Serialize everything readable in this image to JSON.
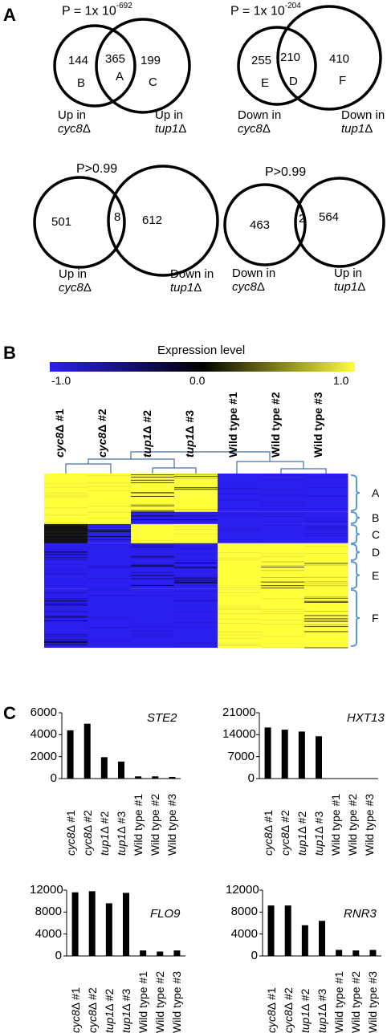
{
  "panels": {
    "a": "A",
    "b": "B",
    "c": "C"
  },
  "venn": [
    {
      "p_base": "P = 1x 10",
      "p_exp": "-692",
      "left": {
        "count": "144",
        "region": "B"
      },
      "overlap": {
        "count": "365",
        "region": "A"
      },
      "right": {
        "count": "199",
        "region": "C"
      },
      "left_label": {
        "prefix": "Up in",
        "gene": "cyc8",
        "suffix": "Δ"
      },
      "right_label": {
        "prefix": "Up in",
        "gene": "tup1",
        "suffix": "Δ"
      }
    },
    {
      "p_base": "P = 1x 10",
      "p_exp": "-204",
      "left": {
        "count": "255",
        "region": "E"
      },
      "overlap": {
        "count": "210",
        "region": "D"
      },
      "right": {
        "count": "410",
        "region": "F"
      },
      "left_label": {
        "prefix": "Down in",
        "gene": "cyc8",
        "suffix": "Δ"
      },
      "right_label": {
        "prefix": "Down in",
        "gene": "tup1",
        "suffix": "Δ"
      }
    },
    {
      "p_text": "P>0.99",
      "left": {
        "count": "501"
      },
      "overlap": {
        "count": "8"
      },
      "right": {
        "count": "612"
      },
      "left_label": {
        "prefix": "Up in",
        "gene": "cyc8",
        "suffix": "Δ"
      },
      "right_label": {
        "prefix": "Down in",
        "gene": "tup1",
        "suffix": "Δ"
      }
    },
    {
      "p_text": "P>0.99",
      "left": {
        "count": "463"
      },
      "overlap": {
        "count": "2"
      },
      "right": {
        "count": "564"
      },
      "left_label": {
        "prefix": "Down in",
        "gene": "cyc8",
        "suffix": "Δ"
      },
      "right_label": {
        "prefix": "Up in",
        "gene": "tup1",
        "suffix": "Δ"
      }
    }
  ],
  "heatmap": {
    "title": "Expression level",
    "scale_labels": [
      "-1.0",
      "0.0",
      "1.0"
    ],
    "colors": {
      "low": "#2b1ff0",
      "mid": "#000000",
      "high": "#ffff3a",
      "bracket": "#5b9bd5"
    },
    "columns": [
      {
        "gene": "cyc8",
        "suffix": "Δ #1"
      },
      {
        "gene": "cyc8",
        "suffix": "Δ #2"
      },
      {
        "gene": "tup1",
        "suffix": "Δ #2"
      },
      {
        "gene": "tup1",
        "suffix": "Δ #3"
      },
      {
        "gene": "",
        "suffix": "Wild type #1"
      },
      {
        "gene": "",
        "suffix": "Wild type #2"
      },
      {
        "gene": "",
        "suffix": "Wild type #3"
      }
    ],
    "clusters": [
      "A",
      "B",
      "C",
      "D",
      "E",
      "F"
    ]
  },
  "chart_data": [
    {
      "type": "bar",
      "title": "STE2",
      "categories": [
        "cyc8Δ #1",
        "cyc8Δ #2",
        "tup1Δ #2",
        "tup1Δ #3",
        "Wild type #1",
        "Wild type #2",
        "Wild type #3"
      ],
      "values": [
        4400,
        5000,
        1950,
        1550,
        200,
        200,
        150
      ],
      "ylim": [
        0,
        6000
      ],
      "yticks": [
        "6000",
        "4000",
        "2000",
        "0"
      ]
    },
    {
      "type": "bar",
      "title": "HXT13",
      "categories": [
        "cyc8Δ #1",
        "cyc8Δ #2",
        "tup1Δ #2",
        "tup1Δ #3",
        "Wild type #1",
        "Wild type #2",
        "Wild type #3"
      ],
      "values": [
        16300,
        15600,
        15000,
        13500,
        0,
        0,
        0
      ],
      "ylim": [
        0,
        21000
      ],
      "yticks": [
        "21000",
        "14000",
        "7000",
        "0"
      ]
    },
    {
      "type": "bar",
      "title": "FLO9",
      "categories": [
        "cyc8Δ #1",
        "cyc8Δ #2",
        "tup1Δ #2",
        "tup1Δ #3",
        "Wild type #1",
        "Wild type #2",
        "Wild type #3"
      ],
      "values": [
        11600,
        11800,
        9600,
        11500,
        1000,
        800,
        1000
      ],
      "ylim": [
        0,
        12000
      ],
      "yticks": [
        "12000",
        "8000",
        "4000",
        "0"
      ]
    },
    {
      "type": "bar",
      "title": "RNR3",
      "categories": [
        "cyc8Δ #1",
        "cyc8Δ #2",
        "tup1Δ #2",
        "tup1Δ #3",
        "Wild type #1",
        "Wild type #2",
        "Wild type #3"
      ],
      "values": [
        9200,
        9200,
        5600,
        6400,
        1100,
        1000,
        1100
      ],
      "ylim": [
        0,
        12000
      ],
      "yticks": [
        "12000",
        "8000",
        "4000",
        "0"
      ]
    }
  ]
}
